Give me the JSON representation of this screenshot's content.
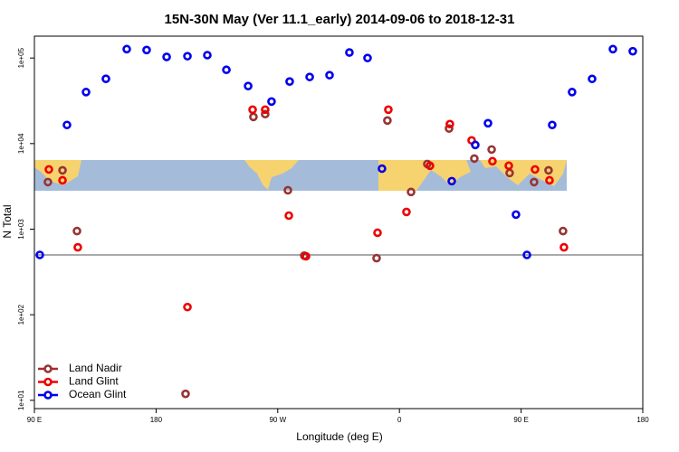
{
  "chart_data": {
    "type": "scatter",
    "title": "15N-30N May (Ver 11.1_early)   2014-09-06 to 2018-12-31",
    "x_label": "Longitude (deg E)",
    "y_label": "N Total",
    "log_y": true,
    "xlim": [
      90,
      540
    ],
    "ylim": [
      8,
      180000
    ],
    "xticks": [
      {
        "value": 90,
        "label": "90 E"
      },
      {
        "value": 180,
        "label": "180"
      },
      {
        "value": 270,
        "label": "90 W"
      },
      {
        "value": 360,
        "label": "0"
      },
      {
        "value": 450,
        "label": "90 E"
      },
      {
        "value": 540,
        "label": "180"
      }
    ],
    "yticks": [
      {
        "value": 10,
        "label": "1e+01"
      },
      {
        "value": 100,
        "label": "1e+02"
      },
      {
        "value": 1000,
        "label": "1e+03"
      },
      {
        "value": 10000,
        "label": "1e+04"
      },
      {
        "value": 100000,
        "label": "1e+05"
      }
    ],
    "hline": 500,
    "legend": "bottom-left",
    "series": [
      {
        "name": "Land Nadir",
        "color": "#993333",
        "x": [
          100.0,
          110.8,
          121.5,
          201.8,
          252.0,
          260.7,
          277.5,
          289.6,
          343.1,
          351.1,
          368.6,
          380.6,
          396.7,
          415.4,
          428.2,
          441.5,
          459.6,
          470.3,
          481.0
        ],
        "values": [
          3550,
          4870,
          950,
          11.9,
          20500,
          22100,
          2850,
          490,
          458,
          18600,
          2720,
          5780,
          15000,
          6680,
          8530,
          4530,
          3550,
          4870,
          950
        ]
      },
      {
        "name": "Land Glint",
        "color": "#ee0000",
        "x": [
          100.7,
          110.8,
          122.1,
          203.2,
          251.4,
          260.7,
          278.2,
          290.9,
          343.8,
          351.8,
          365.2,
          382.6,
          397.3,
          413.4,
          428.8,
          440.9,
          460.3,
          471.0,
          481.7
        ],
        "values": [
          4990,
          3720,
          614,
          123,
          24900,
          24900,
          1440,
          482,
          908,
          24900,
          1590,
          5510,
          16900,
          10900,
          6220,
          5510,
          4990,
          3720,
          614
        ]
      },
      {
        "name": "Ocean Glint",
        "color": "#0000ee",
        "x": [
          94.0,
          114.1,
          128.2,
          142.9,
          158.3,
          173.0,
          187.8,
          203.2,
          217.9,
          232.0,
          248.1,
          265.4,
          278.8,
          293.6,
          308.3,
          323.0,
          336.4,
          347.1,
          398.7,
          416.1,
          425.5,
          446.2,
          454.3,
          473.0,
          487.7,
          502.5,
          517.9,
          532.6
        ],
        "values": [
          500,
          16500,
          40000,
          57100,
          127000,
          124000,
          103000,
          105000,
          108000,
          72800,
          47000,
          31000,
          53100,
          60000,
          63000,
          116000,
          100000,
          5100,
          3640,
          9640,
          17300,
          1480,
          500,
          16500,
          40000,
          57000,
          127000,
          120000
        ]
      }
    ]
  }
}
